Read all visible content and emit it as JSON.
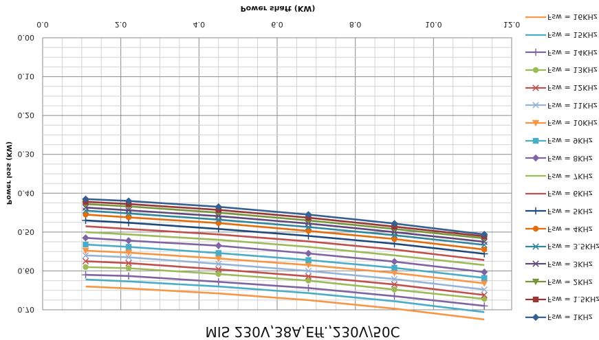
{
  "chart_data": {
    "type": "line",
    "title": "MIS 230V,38A,Eff.,230V/50C",
    "xlabel": "Power shaft (KW)",
    "ylabel": "Power loss (KW)",
    "xlim": [
      0,
      12
    ],
    "ylim": [
      0,
      0.7
    ],
    "x_ticks": [
      "0.0",
      "2.0",
      "4.0",
      "6.0",
      "8.0",
      "10.0",
      "12.0"
    ],
    "y_ticks": [
      "0.00",
      "0.10",
      "0.20",
      "0.30",
      "0.40",
      "0.50",
      "0.60",
      "0.70"
    ],
    "grid": true,
    "legend_position": "right",
    "x": [
      1.1,
      2.2,
      4.5,
      6.8,
      9.0,
      11.3
    ],
    "series": [
      {
        "name": "Fsw = 16KHz",
        "color": "#f79646",
        "marker": "none",
        "values": [
          0.64,
          0.645,
          0.658,
          0.675,
          0.697,
          0.725
        ]
      },
      {
        "name": "Fsw = 15KHz",
        "color": "#4bacc6",
        "marker": "none",
        "values": [
          0.622,
          0.627,
          0.64,
          0.657,
          0.678,
          0.706
        ]
      },
      {
        "name": "Fsw = 14KHz",
        "color": "#8064a2",
        "marker": "plus",
        "values": [
          0.61,
          0.613,
          0.628,
          0.644,
          0.665,
          0.69
        ]
      },
      {
        "name": "Fsw = 13KHz",
        "color": "#9bbb59",
        "marker": "circle",
        "values": [
          0.59,
          0.593,
          0.608,
          0.625,
          0.648,
          0.672
        ]
      },
      {
        "name": "Fsw = 12KHz",
        "color": "#c0504d",
        "marker": "x",
        "values": [
          0.575,
          0.58,
          0.596,
          0.614,
          0.635,
          0.662
        ]
      },
      {
        "name": "Fsw = 11KHz",
        "color": "#95b3d7",
        "marker": "x",
        "values": [
          0.56,
          0.565,
          0.582,
          0.6,
          0.621,
          0.648
        ]
      },
      {
        "name": "Fsw = 10KHz",
        "color": "#f79646",
        "marker": "triangle",
        "values": [
          0.548,
          0.553,
          0.568,
          0.585,
          0.605,
          0.632
        ]
      },
      {
        "name": "Fsw = 9KHz",
        "color": "#4bacc6",
        "marker": "square",
        "values": [
          0.532,
          0.538,
          0.554,
          0.572,
          0.592,
          0.618
        ]
      },
      {
        "name": "Fsw = 8KHz",
        "color": "#8064a2",
        "marker": "diamond",
        "values": [
          0.515,
          0.522,
          0.535,
          0.555,
          0.576,
          0.603
        ]
      },
      {
        "name": "Fsw = 7KHz",
        "color": "#9bbb59",
        "marker": "none",
        "values": [
          0.5,
          0.506,
          0.52,
          0.538,
          0.56,
          0.585
        ]
      },
      {
        "name": "Fsw = 6KHz",
        "color": "#c0504d",
        "marker": "none",
        "values": [
          0.485,
          0.492,
          0.506,
          0.524,
          0.545,
          0.572
        ]
      },
      {
        "name": "Fsw = 5KHz",
        "color": "#1f497d",
        "marker": "plus",
        "values": [
          0.47,
          0.476,
          0.492,
          0.51,
          0.53,
          0.556
        ]
      },
      {
        "name": "Fsw = 4KHz",
        "color": "#e46c0a",
        "marker": "circle",
        "values": [
          0.455,
          0.462,
          0.477,
          0.497,
          0.518,
          0.545
        ]
      },
      {
        "name": "Fsw = 3.5KHz",
        "color": "#31859c",
        "marker": "x",
        "values": [
          0.445,
          0.452,
          0.468,
          0.487,
          0.508,
          0.533
        ]
      },
      {
        "name": "Fsw = 3KHz",
        "color": "#5f497a",
        "marker": "x",
        "values": [
          0.437,
          0.444,
          0.459,
          0.478,
          0.5,
          0.525
        ]
      },
      {
        "name": "Fsw = 2KHz",
        "color": "#77933c",
        "marker": "triangle",
        "values": [
          0.428,
          0.434,
          0.45,
          0.47,
          0.492,
          0.516
        ]
      },
      {
        "name": "Fsw = 1.5KHz",
        "color": "#953735",
        "marker": "square",
        "values": [
          0.422,
          0.428,
          0.443,
          0.463,
          0.486,
          0.511
        ]
      },
      {
        "name": "Fsw = 1KHz",
        "color": "#366092",
        "marker": "diamond",
        "values": [
          0.415,
          0.42,
          0.435,
          0.455,
          0.478,
          0.506
        ]
      }
    ]
  }
}
